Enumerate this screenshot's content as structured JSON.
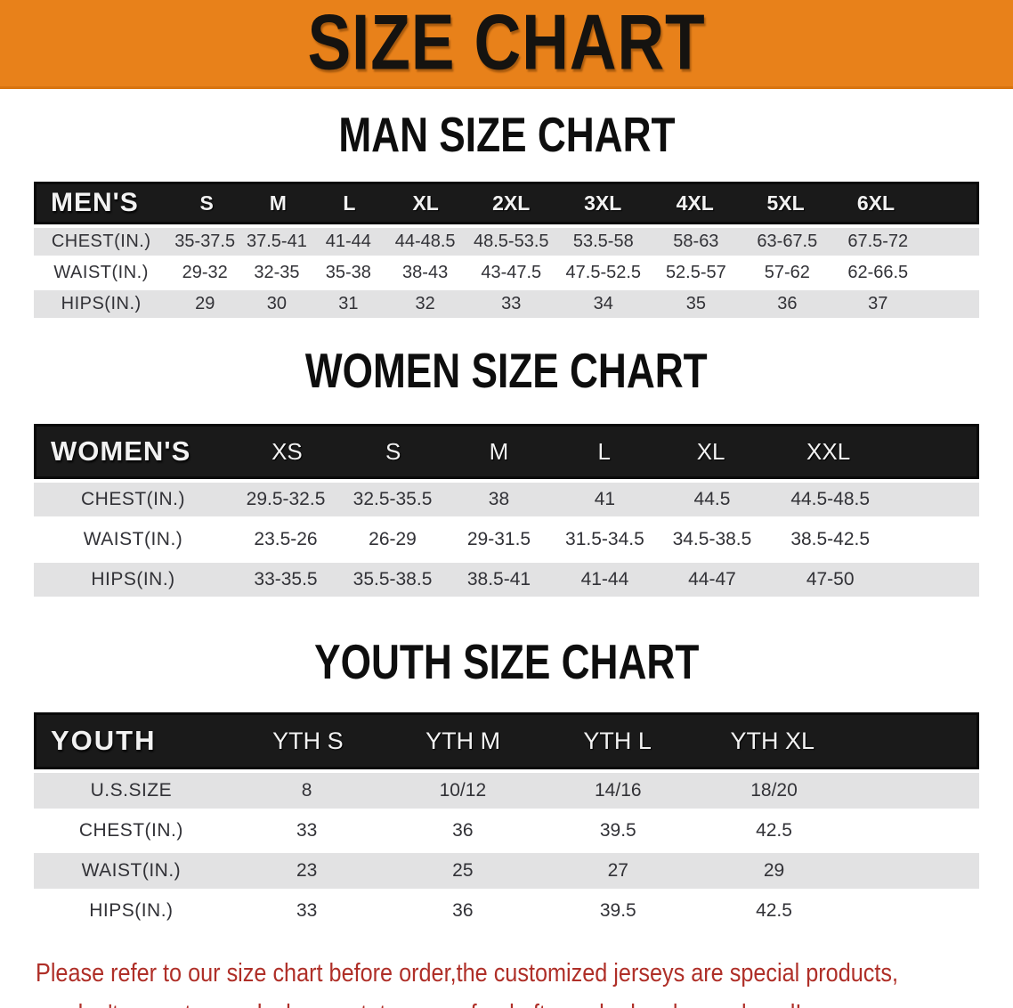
{
  "colors": {
    "banner_orange": "#E8811A",
    "header_bg": "#1A1A1A",
    "row_gray": "#E2E2E3",
    "disclaimer_red": "#AF2F28"
  },
  "banner": {
    "title": "SIZE CHART"
  },
  "men": {
    "heading": "MAN SIZE CHART",
    "corner": "MEN'S",
    "columns": [
      "S",
      "M",
      "L",
      "XL",
      "2XL",
      "3XL",
      "4XL",
      "5XL",
      "6XL"
    ],
    "rows": [
      {
        "label": "CHEST(IN.)",
        "values": [
          "35-37.5",
          "37.5-41",
          "41-44",
          "44-48.5",
          "48.5-53.5",
          "53.5-58",
          "58-63",
          "63-67.5",
          "67.5-72"
        ]
      },
      {
        "label": "WAIST(IN.)",
        "values": [
          "29-32",
          "32-35",
          "35-38",
          "38-43",
          "43-47.5",
          "47.5-52.5",
          "52.5-57",
          "57-62",
          "62-66.5"
        ]
      },
      {
        "label": "HIPS(IN.)",
        "values": [
          "29",
          "30",
          "31",
          "32",
          "33",
          "34",
          "35",
          "36",
          "37"
        ]
      }
    ]
  },
  "women": {
    "heading": "WOMEN SIZE CHART",
    "corner": "WOMEN'S",
    "columns": [
      "XS",
      "S",
      "M",
      "L",
      "XL",
      "XXL"
    ],
    "rows": [
      {
        "label": "CHEST(IN.)",
        "values": [
          "29.5-32.5",
          "32.5-35.5",
          "38",
          "41",
          "44.5",
          "44.5-48.5"
        ]
      },
      {
        "label": "WAIST(IN.)",
        "values": [
          "23.5-26",
          "26-29",
          "29-31.5",
          "31.5-34.5",
          "34.5-38.5",
          "38.5-42.5"
        ]
      },
      {
        "label": "HIPS(IN.)",
        "values": [
          "33-35.5",
          "35.5-38.5",
          "38.5-41",
          "41-44",
          "44-47",
          "47-50"
        ]
      }
    ]
  },
  "youth": {
    "heading": "YOUTH SIZE CHART",
    "corner": "YOUTH",
    "columns": [
      "YTH S",
      "YTH M",
      "YTH L",
      "YTH XL"
    ],
    "rows": [
      {
        "label": "U.S.SIZE",
        "values": [
          "8",
          "10/12",
          "14/16",
          "18/20"
        ]
      },
      {
        "label": "CHEST(IN.)",
        "values": [
          "33",
          "36",
          "39.5",
          "42.5"
        ]
      },
      {
        "label": "WAIST(IN.)",
        "values": [
          "23",
          "25",
          "27",
          "29"
        ]
      },
      {
        "label": "HIPS(IN.)",
        "values": [
          "33",
          "36",
          "39.5",
          "42.5"
        ]
      }
    ]
  },
  "disclaimer": {
    "line1": "Please refer to our size chart before order,the customized jerseys are special products,",
    "line2": "we don't accept cancel, change, teturn or refund after order has been placed!"
  }
}
